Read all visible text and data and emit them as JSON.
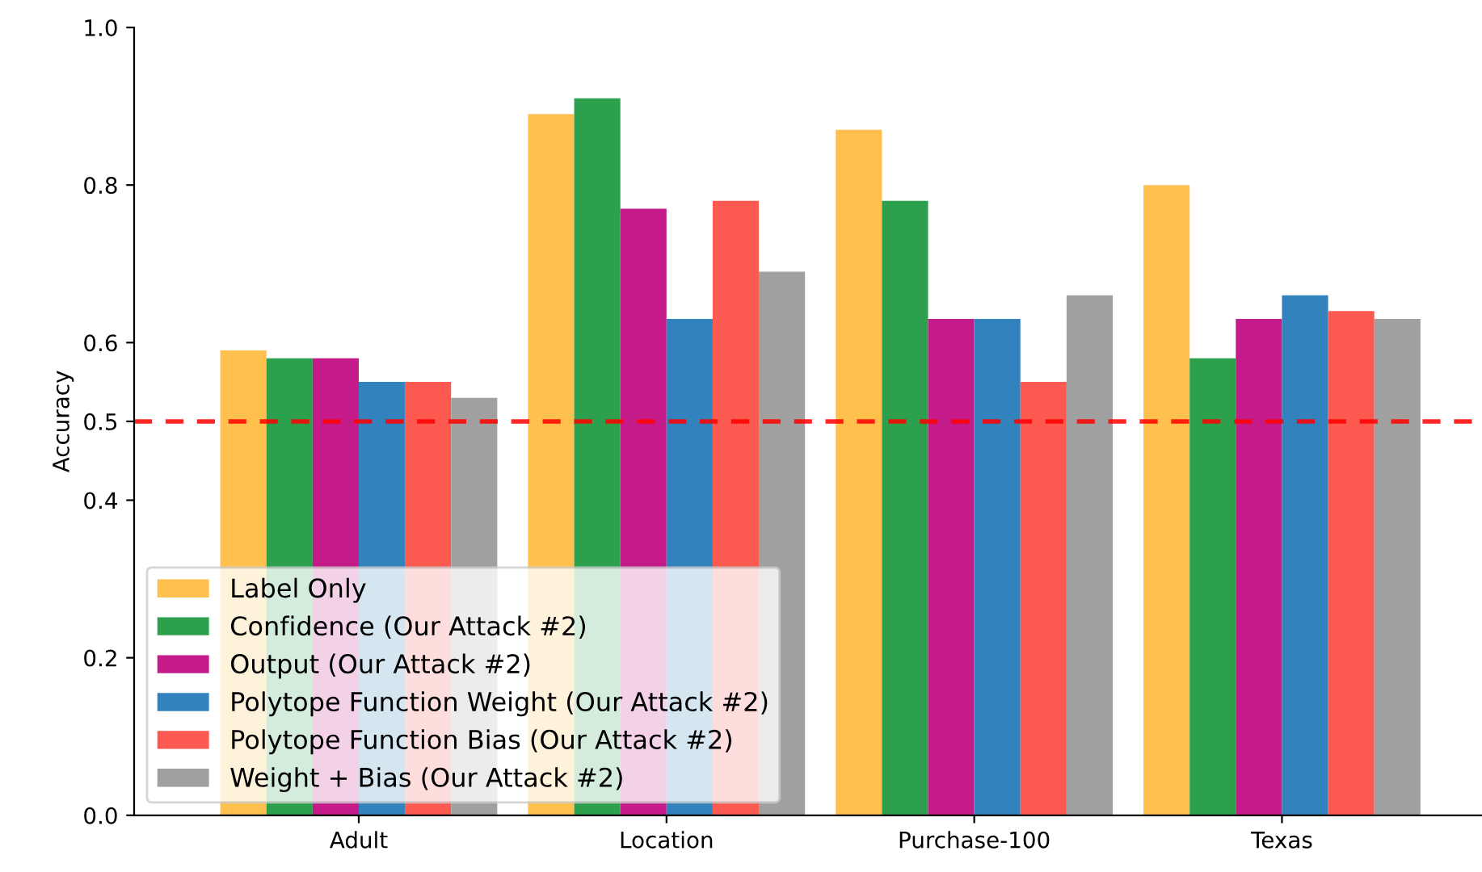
{
  "chart_data": {
    "type": "bar",
    "ylabel": "Accuracy",
    "categories": [
      "Adult",
      "Location",
      "Purchase-100",
      "Texas"
    ],
    "series": [
      {
        "name": "Label Only",
        "color": "#ffc04d",
        "values": [
          0.59,
          0.89,
          0.87,
          0.8
        ]
      },
      {
        "name": "Confidence (Our Attack #2)",
        "color": "#2ca04c",
        "values": [
          0.58,
          0.91,
          0.78,
          0.58
        ]
      },
      {
        "name": "Output (Our Attack #2)",
        "color": "#c51b8a",
        "values": [
          0.58,
          0.77,
          0.63,
          0.63
        ]
      },
      {
        "name": "Polytope Function Weight (Our Attack #2)",
        "color": "#3182bd",
        "values": [
          0.55,
          0.63,
          0.63,
          0.66
        ]
      },
      {
        "name": "Polytope Function Bias (Our Attack #2)",
        "color": "#fc5a50",
        "values": [
          0.55,
          0.78,
          0.55,
          0.64
        ]
      },
      {
        "name": "Weight + Bias (Our Attack #2)",
        "color": "#a0a0a0",
        "values": [
          0.53,
          0.69,
          0.66,
          0.63
        ]
      }
    ],
    "ylim": [
      0,
      1
    ],
    "yticks": [
      {
        "value": 0,
        "label": "0.0"
      },
      0.2,
      0.4,
      0.5,
      0.6,
      0.8,
      {
        "value": 1,
        "label": "1.0"
      }
    ],
    "ref_lines": [
      {
        "axis": "y",
        "value": 0.5,
        "color": "#ff0000",
        "line_style": "dashed"
      }
    ],
    "legend": "bottom left",
    "grid": false
  }
}
